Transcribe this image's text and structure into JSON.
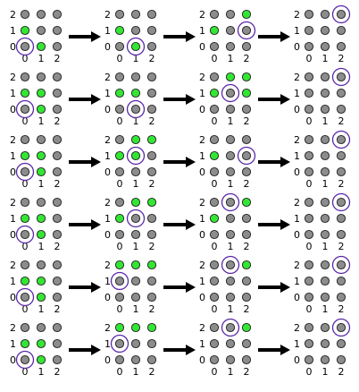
{
  "colors": {
    "inactive_fill": "#8c8c8c",
    "active_fill": "#33e633",
    "dot_stroke": "#1e1e1e",
    "marker": "#5a28a8",
    "arrow": "#000000",
    "background": "#ffffff"
  },
  "axis_labels": {
    "rows": [
      "2",
      "1",
      "0"
    ],
    "cols": [
      "0",
      "1",
      "2"
    ]
  },
  "rows": [
    {
      "steps": [
        {
          "active": [
            [
              0,
              1
            ],
            [
              1,
              0
            ]
          ],
          "marker": [
            0,
            0
          ]
        },
        {
          "active": [
            [
              0,
              1
            ],
            [
              1,
              0
            ]
          ],
          "marker": [
            1,
            0
          ]
        },
        {
          "active": [
            [
              0,
              1
            ],
            [
              2,
              2
            ]
          ],
          "marker": [
            2,
            1
          ]
        },
        {
          "active": [],
          "marker": [
            2,
            2
          ]
        }
      ]
    },
    {
      "steps": [
        {
          "active": [
            [
              0,
              1
            ],
            [
              1,
              0
            ],
            [
              1,
              1
            ]
          ],
          "marker": [
            0,
            0
          ]
        },
        {
          "active": [
            [
              0,
              1
            ],
            [
              1,
              1
            ]
          ],
          "marker": [
            1,
            0
          ]
        },
        {
          "active": [
            [
              0,
              1
            ],
            [
              1,
              2
            ],
            [
              2,
              2
            ],
            [
              2,
              1
            ]
          ],
          "marker": [
            1,
            1
          ]
        },
        {
          "active": [],
          "marker": [
            2,
            2
          ]
        }
      ]
    },
    {
      "steps": [
        {
          "active": [
            [
              0,
              1
            ],
            [
              1,
              0
            ],
            [
              1,
              1
            ]
          ],
          "marker": [
            0,
            0
          ]
        },
        {
          "active": [
            [
              0,
              1
            ],
            [
              1,
              2
            ],
            [
              2,
              2
            ],
            [
              1,
              1
            ]
          ],
          "marker": [
            1,
            1
          ]
        },
        {
          "active": [
            [
              0,
              1
            ]
          ],
          "marker": [
            2,
            1
          ]
        },
        {
          "active": [],
          "marker": [
            2,
            2
          ]
        }
      ]
    },
    {
      "steps": [
        {
          "active": [
            [
              0,
              1
            ],
            [
              1,
              0
            ],
            [
              1,
              1
            ]
          ],
          "marker": [
            0,
            0
          ]
        },
        {
          "active": [
            [
              0,
              1
            ],
            [
              1,
              2
            ],
            [
              2,
              2
            ]
          ],
          "marker": [
            1,
            1
          ]
        },
        {
          "active": [
            [
              0,
              1
            ],
            [
              2,
              2
            ]
          ],
          "marker": [
            1,
            2
          ]
        },
        {
          "active": [],
          "marker": [
            2,
            2
          ]
        }
      ]
    },
    {
      "steps": [
        {
          "active": [
            [
              0,
              1
            ],
            [
              1,
              0
            ],
            [
              1,
              1
            ]
          ],
          "marker": [
            0,
            0
          ]
        },
        {
          "active": [
            [
              0,
              2
            ],
            [
              1,
              2
            ],
            [
              2,
              2
            ]
          ],
          "marker": [
            0,
            1
          ]
        },
        {
          "active": [
            [
              2,
              2
            ]
          ],
          "marker": [
            1,
            2
          ]
        },
        {
          "active": [],
          "marker": [
            2,
            2
          ]
        }
      ]
    },
    {
      "steps": [
        {
          "active": [
            [
              0,
              1
            ],
            [
              1,
              0
            ],
            [
              1,
              1
            ]
          ],
          "marker": [
            0,
            0
          ]
        },
        {
          "active": [
            [
              0,
              2
            ],
            [
              1,
              2
            ],
            [
              2,
              2
            ]
          ],
          "marker": [
            0,
            1
          ]
        },
        {
          "active": [
            [
              2,
              2
            ]
          ],
          "marker": [
            1,
            2
          ]
        },
        {
          "active": [],
          "marker": [
            2,
            2
          ]
        }
      ]
    }
  ]
}
